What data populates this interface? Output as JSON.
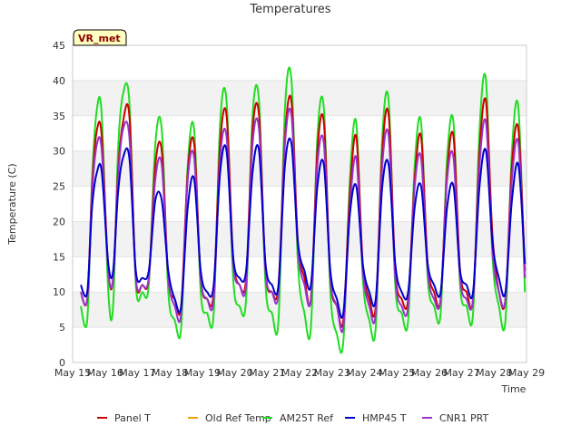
{
  "chart_data": {
    "type": "line",
    "title": "Temperatures",
    "xlabel": "Time",
    "ylabel": "Temperature (C)",
    "badge": "VR_met",
    "ylim": [
      0,
      45
    ],
    "xlim": [
      15,
      29
    ],
    "x_ticks": [
      15,
      16,
      17,
      18,
      19,
      20,
      21,
      22,
      23,
      24,
      25,
      26,
      27,
      28,
      29
    ],
    "x_tick_labels": [
      "May 15",
      "May 16",
      "May 17",
      "May 18",
      "May 19",
      "May 20",
      "May 21",
      "May 22",
      "May 23",
      "May 24",
      "May 25",
      "May 26",
      "May 27",
      "May 28",
      "May 29"
    ],
    "y_ticks": [
      0,
      5,
      10,
      15,
      20,
      25,
      30,
      35,
      40,
      45
    ],
    "y_tick_labels": [
      "0",
      "5",
      "10",
      "15",
      "20",
      "25",
      "30",
      "35",
      "40",
      "45"
    ],
    "grid": "horizontal bands",
    "legend_position": "bottom",
    "series": [
      {
        "name": "Panel T",
        "color": "#cc0000",
        "x": [
          15.25,
          15.45,
          15.6,
          15.75,
          15.9,
          16.1,
          16.25,
          16.4,
          16.55,
          16.75,
          16.95,
          17.15,
          17.35,
          17.55,
          17.75,
          17.95,
          18.15,
          18.35,
          18.55,
          18.75,
          18.95,
          19.15,
          19.35,
          19.55,
          19.75,
          19.95,
          20.15,
          20.35,
          20.55,
          20.75,
          20.95,
          21.15,
          21.35,
          21.55,
          21.75,
          21.95,
          22.15,
          22.35,
          22.55,
          22.75,
          22.95,
          23.15,
          23.35,
          23.55,
          23.75,
          23.95,
          24.15,
          24.35,
          24.55,
          24.75,
          24.95,
          25.15,
          25.35,
          25.55,
          25.75,
          25.95,
          26.15,
          26.35,
          26.55,
          26.75,
          26.95,
          27.15,
          27.35,
          27.55,
          27.75,
          27.95,
          28.15,
          28.35,
          28.55,
          28.75,
          28.95
        ],
        "values": [
          10,
          9,
          25,
          33,
          32,
          13,
          12,
          27,
          34,
          35,
          12,
          11,
          12,
          28,
          30,
          12,
          9,
          8,
          27,
          31,
          12,
          9,
          10,
          31,
          35,
          15,
          11,
          12,
          33,
          35,
          13,
          10,
          11,
          32,
          37,
          17,
          12,
          9,
          30,
          34,
          12,
          8,
          6,
          24,
          32,
          14,
          9,
          8,
          30,
          35,
          13,
          9,
          9,
          26,
          32,
          14,
          10,
          9,
          27,
          32,
          13,
          10,
          9,
          30,
          37,
          18,
          10,
          9,
          28,
          33,
          13
        ]
      },
      {
        "name": "Old Ref Temp",
        "color": "#f0a000",
        "x": [],
        "values": []
      },
      {
        "name": "AM25T Ref",
        "color": "#22dd22",
        "x": [
          15.25,
          15.45,
          15.6,
          15.75,
          15.9,
          16.1,
          16.25,
          16.4,
          16.55,
          16.75,
          16.95,
          17.15,
          17.35,
          17.55,
          17.75,
          17.95,
          18.15,
          18.35,
          18.55,
          18.75,
          18.95,
          19.15,
          19.35,
          19.55,
          19.75,
          19.95,
          20.15,
          20.35,
          20.55,
          20.75,
          20.95,
          21.15,
          21.35,
          21.55,
          21.75,
          21.95,
          22.15,
          22.35,
          22.55,
          22.75,
          22.95,
          23.15,
          23.35,
          23.55,
          23.75,
          23.95,
          24.15,
          24.35,
          24.55,
          24.75,
          24.95,
          25.15,
          25.35,
          25.55,
          25.75,
          25.95,
          26.15,
          26.35,
          26.55,
          26.75,
          26.95,
          27.15,
          27.35,
          27.55,
          27.75,
          27.95,
          28.15,
          28.35,
          28.55,
          28.75,
          28.95
        ],
        "values": [
          8,
          6,
          26,
          36,
          35,
          10,
          8,
          30,
          38,
          37,
          11,
          10,
          11,
          31,
          33,
          10,
          6,
          5,
          28,
          33,
          10,
          7,
          7,
          34,
          37,
          12,
          8,
          9,
          35,
          37,
          11,
          7,
          6,
          36,
          40,
          14,
          7,
          5,
          32,
          36,
          10,
          4,
          3,
          26,
          34,
          12,
          6,
          5,
          32,
          37,
          11,
          7,
          6,
          28,
          34,
          12,
          8,
          7,
          29,
          34,
          11,
          8,
          7,
          33,
          40,
          15,
          8,
          6,
          30,
          36,
          10
        ]
      },
      {
        "name": "HMP45 T",
        "color": "#0000cc",
        "x": [
          15.25,
          15.45,
          15.6,
          15.75,
          15.9,
          16.1,
          16.25,
          16.4,
          16.55,
          16.75,
          16.95,
          17.15,
          17.35,
          17.55,
          17.75,
          17.95,
          18.15,
          18.35,
          18.55,
          18.75,
          18.95,
          19.15,
          19.35,
          19.55,
          19.75,
          19.95,
          20.15,
          20.35,
          20.55,
          20.75,
          20.95,
          21.15,
          21.35,
          21.55,
          21.75,
          21.95,
          22.15,
          22.35,
          22.55,
          22.75,
          22.95,
          23.15,
          23.35,
          23.55,
          23.75,
          23.95,
          24.15,
          24.35,
          24.55,
          24.75,
          24.95,
          25.15,
          25.35,
          25.55,
          25.75,
          25.95,
          26.15,
          26.35,
          26.55,
          26.75,
          26.95,
          27.15,
          27.35,
          27.55,
          27.75,
          27.95,
          28.15,
          28.35,
          28.55,
          28.75,
          28.95
        ],
        "values": [
          11,
          10,
          22,
          27,
          27,
          14,
          13,
          24,
          29,
          29,
          13,
          12,
          13,
          23,
          23,
          13,
          9,
          8,
          22,
          26,
          13,
          10,
          11,
          27,
          30,
          15,
          12,
          13,
          27,
          30,
          14,
          11,
          11,
          28,
          31,
          17,
          13,
          11,
          25,
          28,
          13,
          9,
          7,
          21,
          25,
          14,
          10,
          9,
          25,
          28,
          14,
          10,
          10,
          22,
          25,
          14,
          11,
          10,
          22,
          25,
          13,
          11,
          10,
          25,
          30,
          17,
          12,
          10,
          23,
          28,
          14
        ]
      },
      {
        "name": "CNR1 PRT",
        "color": "#9933cc",
        "x": [
          15.25,
          15.45,
          15.6,
          15.75,
          15.9,
          16.1,
          16.25,
          16.4,
          16.55,
          16.75,
          16.95,
          17.15,
          17.35,
          17.55,
          17.75,
          17.95,
          18.15,
          18.35,
          18.55,
          18.75,
          18.95,
          19.15,
          19.35,
          19.55,
          19.75,
          19.95,
          20.15,
          20.35,
          20.55,
          20.75,
          20.95,
          21.15,
          21.35,
          21.55,
          21.75,
          21.95,
          22.15,
          22.35,
          22.55,
          22.75,
          22.95,
          23.15,
          23.35,
          23.55,
          23.75,
          23.95,
          24.15,
          24.35,
          24.55,
          24.75,
          24.95,
          25.15,
          25.35,
          25.55,
          25.75,
          25.95,
          26.15,
          26.35,
          26.55,
          26.75,
          26.95,
          27.15,
          27.35,
          27.55,
          27.75,
          27.95,
          28.15,
          28.35,
          28.55,
          28.75,
          28.95
        ],
        "values": [
          10,
          9,
          24,
          31,
          30,
          13,
          12,
          26,
          33,
          32,
          12,
          11,
          12,
          26,
          28,
          12,
          8,
          7,
          26,
          29,
          12,
          9,
          9,
          29,
          32,
          14,
          11,
          11,
          31,
          33,
          13,
          10,
          10,
          31,
          35,
          16,
          11,
          9,
          28,
          31,
          12,
          8,
          5,
          22,
          29,
          13,
          8,
          7,
          28,
          32,
          12,
          8,
          8,
          25,
          29,
          13,
          9,
          9,
          26,
          29,
          12,
          9,
          9,
          28,
          34,
          16,
          10,
          9,
          26,
          31,
          12
        ]
      }
    ]
  }
}
